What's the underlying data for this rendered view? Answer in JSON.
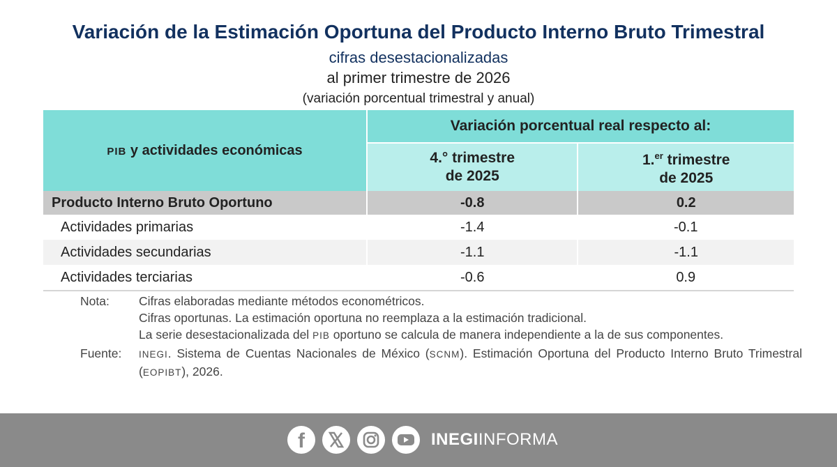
{
  "header": {
    "title": "Variación de la Estimación Oportuna del Producto Interno Bruto Trimestral",
    "subtitle": "cifras desestacionalizadas",
    "period": "al primer trimestre de 2026",
    "units": "(variación porcentual trimestral y anual)"
  },
  "table": {
    "col_header_prefix": "PIB",
    "col_header_rest": " y actividades económicas",
    "group_header": "Variación porcentual real respecto al:",
    "col1_line1": "4.° trimestre",
    "col1_line2": "de 2025",
    "col2_line1_a": "1.",
    "col2_line1_sup": "er",
    "col2_line1_b": " trimestre",
    "col2_line2": "de 2025",
    "rows": [
      {
        "label": "Producto Interno Bruto Oportuno",
        "v1": "-0.8",
        "v2": "0.2"
      },
      {
        "label": "Actividades primarias",
        "v1": "-1.4",
        "v2": "-0.1"
      },
      {
        "label": "Actividades secundarias",
        "v1": "-1.1",
        "v2": "-1.1"
      },
      {
        "label": "Actividades terciarias",
        "v1": "-0.6",
        "v2": "0.9"
      }
    ]
  },
  "notes": {
    "label": "Nota:",
    "line1": "Cifras elaboradas mediante métodos econométricos.",
    "line2": "Cifras oportunas. La estimación oportuna no reemplaza a la estimación tradicional.",
    "line3_a": "La serie desestacionalizada del ",
    "line3_sc": "PIB",
    "line3_b": " oportuno se calcula de manera independiente a la de sus componentes.",
    "source_label": "Fuente:",
    "source_sc1": "INEGI",
    "source_a": ". Sistema de Cuentas Nacionales de México (",
    "source_sc2": "SCNM",
    "source_b": "). Estimación Oportuna del Producto Interno Bruto Trimestral (",
    "source_sc3": "EOPIBT",
    "source_c": "), 2026."
  },
  "footer": {
    "brand_bold": "INEGI",
    "brand_light": "INFORMA",
    "icons": [
      "facebook-icon",
      "x-icon",
      "instagram-icon",
      "youtube-icon"
    ],
    "background": "#8a8a8a"
  }
}
